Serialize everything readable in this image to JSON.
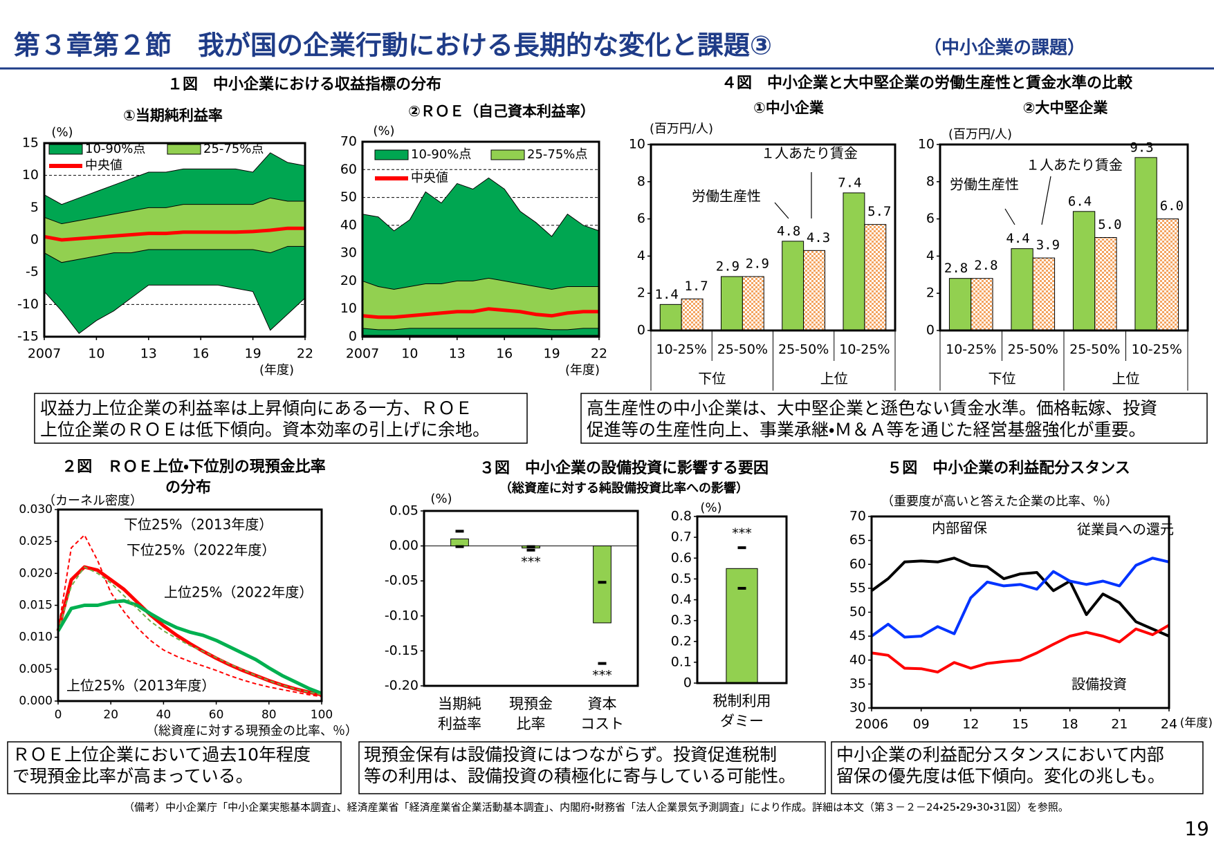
{
  "header": {
    "title": "第３章第２節　我が国の企業行動における長期的な変化と課題③",
    "subtitle": "（中小企業の課題）"
  },
  "figures": {
    "fig1": "１図　中小企業における収益指標の分布",
    "fig4": "４図　中小企業と大中堅企業の労働生産性と賃金水準の比較",
    "fig2": [
      "２図　ＲＯＥ上位・下位別の現預金比率",
      "の分布"
    ],
    "fig3": [
      "３図　中小企業の設備投資に影響する要因",
      "（総資産に対する純設備投資比率への影響）"
    ],
    "fig5": "５図　中小企業の利益配分スタンス"
  },
  "summaries": {
    "fig1": [
      "収益力上位企業の利益率は上昇傾向にある一方、ＲＯＥ",
      "上位企業のＲＯＥは低下傾向。資本効率の引上げに余地。"
    ],
    "fig4": [
      "高生産性の中小企業は、大中堅企業と遜色ない賃金水準。価格転嫁、投資",
      "促進等の生産性向上、事業承継・Ｍ＆Ａ等を通じた経営基盤強化が重要。"
    ],
    "fig2": [
      "ＲＯＥ上位企業において過去10年程度",
      "で現預金比率が高まっている。"
    ],
    "fig3": [
      "現預金保有は設備投資にはつながらず。投資促進税制",
      "等の利用は、設備投資の積極化に寄与している可能性。"
    ],
    "fig5": [
      "中小企業の利益配分スタンスにおいて内部",
      "留保の優先度は低下傾向。変化の兆しも。"
    ]
  },
  "footnote": "（備考）中小企業庁「中小企業実態基本調査」、経済産業省「経済産業省企業活動基本調査」、内閣府・財務省「法人企業景気予測調査」により作成。詳細は本文（第３－２－24・25・29・30・31図）を参照。",
  "page_number": 19,
  "chart_data": [
    {
      "type": "band",
      "title": "①当期純利益率",
      "y_unit": "(%)",
      "x_unit": "(年度)",
      "x": [
        2007,
        2008,
        2009,
        2010,
        2011,
        2012,
        2013,
        2014,
        2015,
        2016,
        2017,
        2018,
        2019,
        2020,
        2021,
        2022
      ],
      "xlim": [
        2007,
        2022
      ],
      "xticks": [
        2007,
        {
          "value": 2010,
          "label": "10"
        },
        {
          "value": 2013,
          "label": "13"
        },
        {
          "value": 2016,
          "label": "16"
        },
        {
          "value": 2019,
          "label": "19"
        },
        {
          "value": 2022,
          "label": "22"
        }
      ],
      "ylim": [
        -15,
        15
      ],
      "yticks": [
        15,
        10,
        5,
        0,
        -5,
        -10,
        -15
      ],
      "grid": true,
      "series": [
        {
          "name": "10-90%点",
          "color": "#00a651",
          "lower": [
            -8,
            -11,
            -14.5,
            -12.5,
            -11,
            -9,
            -7,
            -7,
            -7,
            -7,
            -7,
            -7.5,
            -8,
            -14,
            -11.5,
            -9
          ],
          "upper": [
            7,
            5.5,
            6.5,
            7.5,
            8.5,
            9.5,
            10.5,
            10.5,
            11,
            11,
            11,
            11,
            10.5,
            13.5,
            12,
            11.5
          ]
        },
        {
          "name": "25-75%点",
          "color": "#92d050",
          "lower": [
            -2,
            -3.5,
            -3,
            -2.5,
            -2,
            -2,
            -1.5,
            -1.5,
            -1.5,
            -1.5,
            -1.5,
            -1.5,
            -1.5,
            -2,
            -1,
            -1
          ],
          "upper": [
            3.5,
            2.5,
            3,
            3.5,
            4,
            4.5,
            5,
            5,
            5.5,
            5.5,
            5.5,
            5.5,
            5.5,
            6.5,
            6,
            6
          ]
        },
        {
          "name": "中央値",
          "color": "#ff0000",
          "values": [
            0.5,
            0,
            0.2,
            0.4,
            0.6,
            0.8,
            1,
            1,
            1.2,
            1.2,
            1.2,
            1.2,
            1.3,
            1.5,
            1.8,
            1.8
          ]
        }
      ]
    },
    {
      "type": "band",
      "title": "②ＲＯＥ（自己資本利益率）",
      "y_unit": "(%)",
      "x_unit": "(年度)",
      "x": [
        2007,
        2008,
        2009,
        2010,
        2011,
        2012,
        2013,
        2014,
        2015,
        2016,
        2017,
        2018,
        2019,
        2020,
        2021,
        2022
      ],
      "xlim": [
        2007,
        2022
      ],
      "xticks": [
        2007,
        {
          "value": 2010,
          "label": "10"
        },
        {
          "value": 2013,
          "label": "13"
        },
        {
          "value": 2016,
          "label": "16"
        },
        {
          "value": 2019,
          "label": "19"
        },
        {
          "value": 2022,
          "label": "22"
        }
      ],
      "ylim": [
        0,
        70
      ],
      "yticks": [
        70,
        60,
        50,
        40,
        30,
        20,
        10,
        0
      ],
      "grid": true,
      "series": [
        {
          "name": "10-90%点",
          "color": "#00a651",
          "lower": [
            0.5,
            0.5,
            0.5,
            0.5,
            0.5,
            0.5,
            0.5,
            0.5,
            0.5,
            0.5,
            0.5,
            0.5,
            0.5,
            0.5,
            0.5,
            0.5
          ],
          "upper": [
            44,
            43,
            38,
            42,
            52,
            48,
            55,
            53,
            57,
            53,
            45,
            41,
            36,
            44,
            40,
            38
          ]
        },
        {
          "name": "25-75%点",
          "color": "#92d050",
          "lower": [
            3,
            2.5,
            2.5,
            3,
            3,
            3,
            3,
            3,
            3,
            3,
            3,
            3,
            2.5,
            2.5,
            3,
            3
          ],
          "upper": [
            20,
            18,
            17,
            18,
            19,
            19,
            20,
            20,
            21,
            20,
            19,
            18,
            17,
            18,
            18,
            18
          ]
        },
        {
          "name": "中央値",
          "color": "#ff0000",
          "values": [
            7.5,
            7,
            7,
            7.5,
            8,
            8.5,
            9,
            9,
            10,
            9.5,
            9,
            8,
            7.5,
            8.5,
            9,
            9
          ]
        }
      ]
    },
    {
      "type": "bar",
      "title": "①中小企業",
      "y_unit": "(百万円/人)",
      "categories": [
        "10-25%",
        "25-50%",
        "25-50%",
        "10-25%"
      ],
      "groups": [
        "下位",
        "上位"
      ],
      "ylim": [
        0,
        10
      ],
      "yticks": [
        0,
        2,
        4,
        6,
        8,
        10
      ],
      "series": [
        {
          "name": "労働生産性",
          "color": "#92d050",
          "label_color": "#00b050",
          "values": [
            1.4,
            2.9,
            4.8,
            7.4
          ],
          "value_labels": [
            "1.4",
            "2.9",
            "4.8",
            "7.4"
          ]
        },
        {
          "name": "１人あたり賃金",
          "color": "#f4a460",
          "label_color": "#ff0000",
          "hatch": true,
          "values": [
            1.7,
            2.9,
            4.3,
            5.7
          ],
          "value_labels": [
            "1.7",
            "2.9",
            "4.3",
            "5.7"
          ]
        }
      ]
    },
    {
      "type": "bar",
      "title": "②大中堅企業",
      "y_unit": "(百万円/人)",
      "categories": [
        "10-25%",
        "25-50%",
        "25-50%",
        "10-25%"
      ],
      "groups": [
        "下位",
        "上位"
      ],
      "ylim": [
        0,
        10
      ],
      "yticks": [
        0,
        2,
        4,
        6,
        8,
        10
      ],
      "series": [
        {
          "name": "労働生産性",
          "color": "#92d050",
          "label_color": "#00b050",
          "values": [
            2.8,
            4.4,
            6.4,
            9.3
          ],
          "value_labels": [
            "2.8",
            "4.4",
            "6.4",
            "9.3"
          ]
        },
        {
          "name": "１人あたり賃金",
          "color": "#f4a460",
          "label_color": "#ff0000",
          "hatch": true,
          "values": [
            2.8,
            3.9,
            5.0,
            6.0
          ],
          "value_labels": [
            "2.8",
            "3.9",
            "5.0",
            "6.0"
          ]
        }
      ]
    },
    {
      "type": "line",
      "y_unit": "（カーネル密度）",
      "x_label": "（総資産に対する現預金の比率、％）",
      "x": [
        0,
        5,
        10,
        15,
        20,
        25,
        30,
        35,
        40,
        45,
        50,
        55,
        60,
        65,
        70,
        75,
        80,
        85,
        90,
        95,
        100
      ],
      "xlim": [
        0,
        100
      ],
      "xticks": [
        0,
        20,
        40,
        60,
        80,
        100
      ],
      "ylim": [
        0,
        0.03
      ],
      "yticks": [
        {
          "value": 0.03,
          "label": "0.030"
        },
        {
          "value": 0.025,
          "label": "0.025"
        },
        {
          "value": 0.02,
          "label": "0.020"
        },
        {
          "value": 0.015,
          "label": "0.015"
        },
        {
          "value": 0.01,
          "label": "0.010"
        },
        {
          "value": 0.005,
          "label": "0.005"
        },
        {
          "value": 0,
          "label": "0.000"
        }
      ],
      "series": [
        {
          "name": "下位25%（2013年度）",
          "color": "#ff0000",
          "dash": true,
          "values": [
            0.011,
            0.024,
            0.026,
            0.022,
            0.017,
            0.014,
            0.0115,
            0.0095,
            0.008,
            0.007,
            0.0062,
            0.0055,
            0.0048,
            0.004,
            0.0033,
            0.0027,
            0.0022,
            0.0018,
            0.0014,
            0.001,
            0.0007
          ]
        },
        {
          "name": "下位25%（2022年度）",
          "color": "#ff0000",
          "values": [
            0.011,
            0.019,
            0.021,
            0.0205,
            0.019,
            0.0175,
            0.0155,
            0.0135,
            0.0118,
            0.0103,
            0.009,
            0.0078,
            0.0067,
            0.0057,
            0.0048,
            0.004,
            0.0032,
            0.0025,
            0.0019,
            0.0014,
            0.001
          ]
        },
        {
          "name": "上位25%（2022年度）",
          "color": "#00b050",
          "values": [
            0.011,
            0.0145,
            0.015,
            0.015,
            0.0155,
            0.0157,
            0.015,
            0.0137,
            0.0125,
            0.0115,
            0.0108,
            0.0103,
            0.0095,
            0.0085,
            0.0075,
            0.0065,
            0.0052,
            0.004,
            0.003,
            0.002,
            0.0012
          ]
        },
        {
          "name": "上位25%（2013年度）",
          "color": "#70ad47",
          "dash": true,
          "values": [
            0.011,
            0.018,
            0.021,
            0.02,
            0.0185,
            0.0165,
            0.0145,
            0.0125,
            0.011,
            0.0098,
            0.0087,
            0.0078,
            0.0068,
            0.0058,
            0.0049,
            0.004,
            0.0032,
            0.0025,
            0.0019,
            0.0014,
            0.001
          ]
        }
      ]
    },
    {
      "type": "bar_ci",
      "y_unit": "(%)",
      "color": "#92d050",
      "categories": [
        [
          "当期純",
          "利益率"
        ],
        [
          "現預金",
          "比率"
        ],
        [
          "資本",
          "コスト"
        ]
      ],
      "ylim": [
        -0.2,
        0.05
      ],
      "yticks": [
        {
          "value": 0.05,
          "label": "0.05"
        },
        {
          "value": 0,
          "label": "0.00"
        },
        -0.05,
        {
          "value": -0.1,
          "label": "-0.10"
        },
        -0.15,
        {
          "value": -0.2,
          "label": "-0.20"
        }
      ],
      "values": [
        0.01,
        -0.003,
        -0.11
      ],
      "upper": [
        0.021,
        -0.001,
        -0.052
      ],
      "lower": [
        -0.001,
        -0.006,
        -0.168
      ],
      "significance": [
        null,
        "***",
        "***"
      ]
    },
    {
      "type": "bar_ci",
      "y_unit": "(%)",
      "color": "#92d050",
      "categories": [
        [
          "税制利用",
          "ダミー"
        ]
      ],
      "ylim": [
        0,
        0.8
      ],
      "yticks": [
        0.8,
        0.7,
        0.6,
        0.5,
        0.4,
        0.3,
        0.2,
        0.1,
        0
      ],
      "values": [
        0.55
      ],
      "upper": [
        0.65
      ],
      "lower": [
        0.455
      ],
      "significance": [
        "***"
      ]
    },
    {
      "type": "line",
      "y_unit": "（重要度が高いと答えた企業の比率、％）",
      "x_unit": "(年度)",
      "x": [
        2006,
        2007,
        2008,
        2009,
        2010,
        2011,
        2012,
        2013,
        2014,
        2015,
        2016,
        2017,
        2018,
        2019,
        2020,
        2021,
        2022,
        2023,
        2024
      ],
      "xlim": [
        2006,
        2024
      ],
      "xticks": [
        2006,
        {
          "value": 2009,
          "label": "09"
        },
        {
          "value": 2012,
          "label": "12"
        },
        {
          "value": 2015,
          "label": "15"
        },
        {
          "value": 2018,
          "label": "18"
        },
        {
          "value": 2021,
          "label": "21"
        },
        {
          "value": 2024,
          "label": "24"
        }
      ],
      "ylim": [
        30,
        70
      ],
      "yticks": [
        70,
        65,
        60,
        55,
        50,
        45,
        40,
        35,
        30
      ],
      "series": [
        {
          "name": "内部留保",
          "color": "#000000",
          "values": [
            54.5,
            57,
            60.5,
            60.7,
            60.5,
            61.3,
            59.8,
            59.5,
            57,
            58,
            58.3,
            54.5,
            56.5,
            49.5,
            53.8,
            52,
            48,
            46.5,
            45
          ]
        },
        {
          "name": "従業員への還元",
          "color": "#0033ff",
          "values": [
            45,
            47.5,
            44.8,
            45,
            47,
            45.5,
            53,
            56.3,
            55.5,
            55.8,
            54.8,
            58.5,
            56.5,
            55.8,
            56.5,
            55.5,
            59.8,
            61.3,
            60.5
          ]
        },
        {
          "name": "設備投資",
          "color": "#ff0000",
          "values": [
            41.5,
            41,
            38.3,
            38.2,
            37.5,
            39.5,
            38.3,
            39.3,
            39.7,
            40,
            41.5,
            43.3,
            45,
            45.8,
            45,
            43.8,
            46.5,
            45.3,
            47.3
          ]
        }
      ]
    }
  ]
}
